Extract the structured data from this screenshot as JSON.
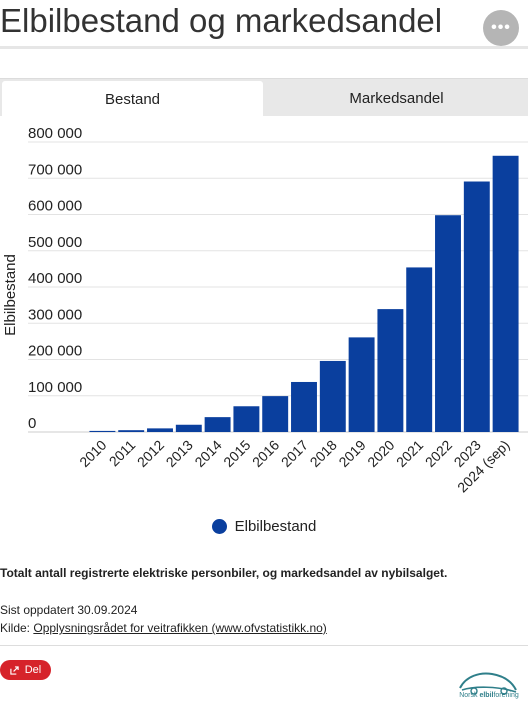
{
  "header": {
    "title": "Elbilbestand og markedsandel",
    "menu_glyph": "•••"
  },
  "tabs": [
    {
      "label": "Bestand",
      "active": true
    },
    {
      "label": "Markedsandel",
      "active": false
    }
  ],
  "chart_data": {
    "type": "bar",
    "categories": [
      "2010",
      "2011",
      "2012",
      "2013",
      "2014",
      "2015",
      "2016",
      "2017",
      "2018",
      "2019",
      "2020",
      "2021",
      "2022",
      "2023",
      "2024 (sep)"
    ],
    "series": [
      {
        "name": "Elbilbestand",
        "values": [
          3000,
          5000,
          10000,
          20000,
          41000,
          71000,
          99000,
          138000,
          196000,
          261000,
          339000,
          454000,
          598000,
          691000,
          762000
        ]
      }
    ],
    "ylabel": "Elbilbestand",
    "xlabel": "",
    "ylim": [
      0,
      800000
    ],
    "yticks": [
      0,
      100000,
      200000,
      300000,
      400000,
      500000,
      600000,
      700000,
      800000
    ],
    "ytick_labels": [
      "0",
      "100 000",
      "200 000",
      "300 000",
      "400 000",
      "500 000",
      "600 000",
      "700 000",
      "800 000"
    ],
    "grid": true,
    "legend_position": "bottom",
    "bar_color": "#0a3f9e"
  },
  "legend": {
    "label": "Elbilbestand"
  },
  "footer": {
    "description": "Totalt antall registrerte elektriske personbiler, og markedsandel av nybilsalget.",
    "updated": "Sist oppdatert 30.09.2024",
    "source_prefix": "Kilde: ",
    "source_link": "Opplysningsrådet for veitrafikken (www.ofvstatistikk.no)",
    "share_label": "Del",
    "share_icon": "share-icon"
  },
  "logo": {
    "text_normal": "Norsk ",
    "text_bold": "elbil",
    "text_end": "forening"
  }
}
